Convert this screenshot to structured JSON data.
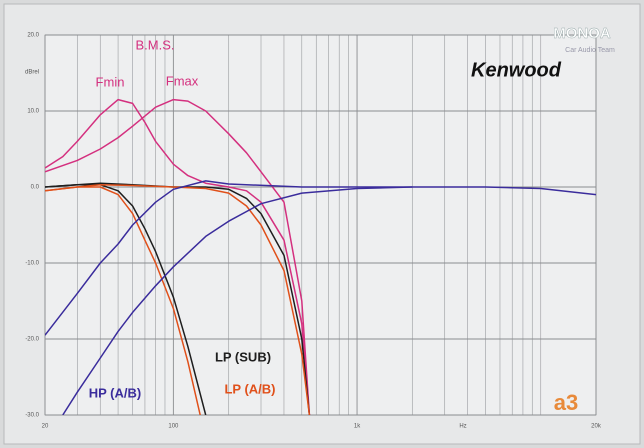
{
  "chart_data": {
    "type": "line",
    "xlog": true,
    "grid": true,
    "xlim": [
      20,
      20000
    ],
    "ylim": [
      -30,
      20
    ],
    "xticks": [
      20,
      100,
      {
        "value": 1000,
        "label": "1k"
      },
      {
        "value": 20000,
        "label": "20k"
      }
    ],
    "xminor_ticks": [
      30,
      40,
      50,
      60,
      70,
      80,
      90,
      200,
      300,
      400,
      500,
      600,
      700,
      800,
      900,
      2000,
      3000,
      4000,
      5000,
      6000,
      7000,
      8000,
      9000,
      10000
    ],
    "yticks": [
      {
        "value": 20,
        "label": "20.0"
      },
      {
        "value": 10,
        "label": "10.0"
      },
      {
        "value": 0,
        "label": "0.0"
      },
      {
        "value": -10,
        "label": "-10.0"
      },
      {
        "value": -20,
        "label": "-20.0"
      },
      {
        "value": -30,
        "label": "-30.0"
      }
    ],
    "ylabel": "dBrel",
    "xlabel": "Hz",
    "annotations": {
      "bms": "B.M.S.",
      "brand": "Kenwood",
      "badge": "a3",
      "watermark": "MONOA",
      "watermark_sub": "Car Audio Team"
    },
    "series": [
      {
        "name": "Fmin",
        "color": "#d4307f",
        "x": [
          20,
          25,
          30,
          40,
          50,
          60,
          70,
          80,
          100,
          120,
          150,
          200,
          250,
          300,
          400,
          500,
          550
        ],
        "values": [
          2.5,
          4,
          6,
          9.5,
          11.5,
          11,
          8.5,
          6,
          3,
          1.5,
          0.5,
          0,
          -0.5,
          -2,
          -7,
          -18,
          -30
        ]
      },
      {
        "name": "Fmax",
        "color": "#d4307f",
        "x": [
          20,
          30,
          40,
          50,
          60,
          80,
          100,
          120,
          150,
          200,
          250,
          300,
          400,
          500,
          550
        ],
        "values": [
          2,
          3.5,
          5,
          6.5,
          8,
          10.5,
          11.5,
          11.3,
          10,
          7,
          4.5,
          2,
          -2,
          -15,
          -30
        ]
      },
      {
        "name": "LP (SUB)",
        "color": "#1e1e1e",
        "x": [
          20,
          30,
          40,
          50,
          60,
          70,
          80,
          100,
          120,
          150
        ],
        "values": [
          0,
          0.3,
          0.3,
          -0.5,
          -2.5,
          -5.5,
          -8.5,
          -14.5,
          -21,
          -30
        ]
      },
      {
        "name": "LP (A/B)",
        "color": "#e0501a",
        "x": [
          20,
          30,
          40,
          50,
          60,
          70,
          80,
          100,
          120,
          140
        ],
        "values": [
          -0.5,
          0,
          0,
          -1,
          -3.5,
          -7,
          -10,
          -16,
          -23,
          -30
        ]
      },
      {
        "color": "#1e1e1e",
        "x": [
          20,
          30,
          40,
          60,
          100,
          150,
          200,
          250,
          300,
          400,
          500,
          550
        ],
        "values": [
          0,
          0.3,
          0.5,
          0.3,
          0,
          0,
          -0.3,
          -1.5,
          -3.5,
          -9,
          -20,
          -30
        ]
      },
      {
        "color": "#e0501a",
        "x": [
          20,
          30,
          40,
          60,
          100,
          150,
          200,
          250,
          300,
          400,
          500,
          550
        ],
        "values": [
          -0.5,
          0,
          0.3,
          0.2,
          0,
          -0.2,
          -0.8,
          -2.5,
          -5,
          -11,
          -22,
          -30
        ]
      },
      {
        "name": "HP (A/B)",
        "color": "#3a2c9c",
        "x": [
          25,
          30,
          40,
          50,
          60,
          80,
          100,
          150,
          200,
          300,
          500,
          1000,
          2000
        ],
        "values": [
          -30,
          -27,
          -22.5,
          -19,
          -16.5,
          -13,
          -10.5,
          -6.5,
          -4.5,
          -2.2,
          -0.8,
          -0.2,
          0
        ]
      },
      {
        "color": "#3a2c9c",
        "x": [
          20,
          30,
          40,
          50,
          60,
          80,
          100,
          150,
          200,
          500,
          1000,
          5000,
          10000,
          20000
        ],
        "values": [
          -19.5,
          -14,
          -10,
          -7.5,
          -5,
          -2,
          -0.3,
          0.8,
          0.4,
          0,
          0,
          0,
          -0.2,
          -1
        ]
      }
    ]
  }
}
